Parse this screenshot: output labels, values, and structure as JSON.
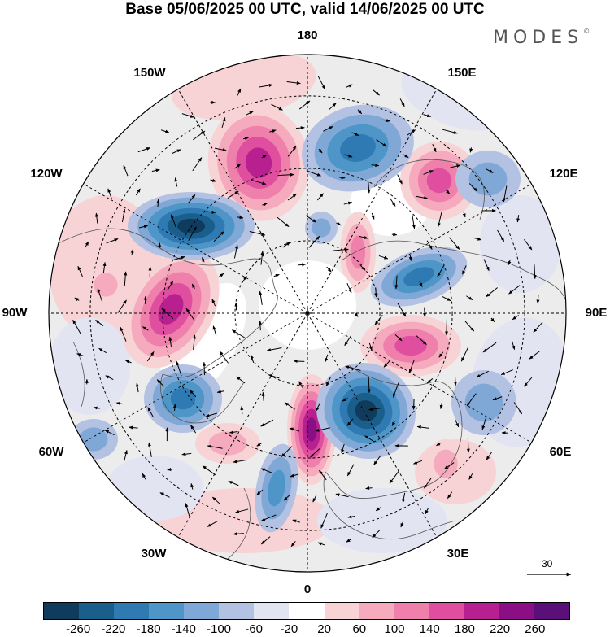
{
  "title": "Base 05/06/2025 00 UTC, valid 14/06/2025 00 UTC",
  "brand": "MODES",
  "brand_mark": "©",
  "longitude_labels": {
    "n": "180",
    "s": "0",
    "e": "90E",
    "w": "90W",
    "ne": "150E",
    "ene": "120E",
    "ese": "60E",
    "se": "30E",
    "nw": "150W",
    "wnw": "120W",
    "wsw": "60W",
    "sw": "30W"
  },
  "vector_reference_label": "30",
  "colorbar": {
    "labels": [
      "-260",
      "-220",
      "-180",
      "-140",
      "-100",
      "-60",
      "-20",
      "20",
      "60",
      "100",
      "140",
      "180",
      "220",
      "260"
    ],
    "colors": [
      "#0f3b5c",
      "#1a5e8c",
      "#2f7ab3",
      "#4f96c8",
      "#7fa8d6",
      "#b3c2e2",
      "#e2e4f2",
      "#ffffff",
      "#f8d3d6",
      "#f5aabd",
      "#ef80ab",
      "#e04e9f",
      "#b8208f",
      "#8a0f85",
      "#5a1078"
    ]
  },
  "icons": {
    "north_pole_marker": "plus-icon",
    "wind_arrow": "arrow-icon"
  }
}
